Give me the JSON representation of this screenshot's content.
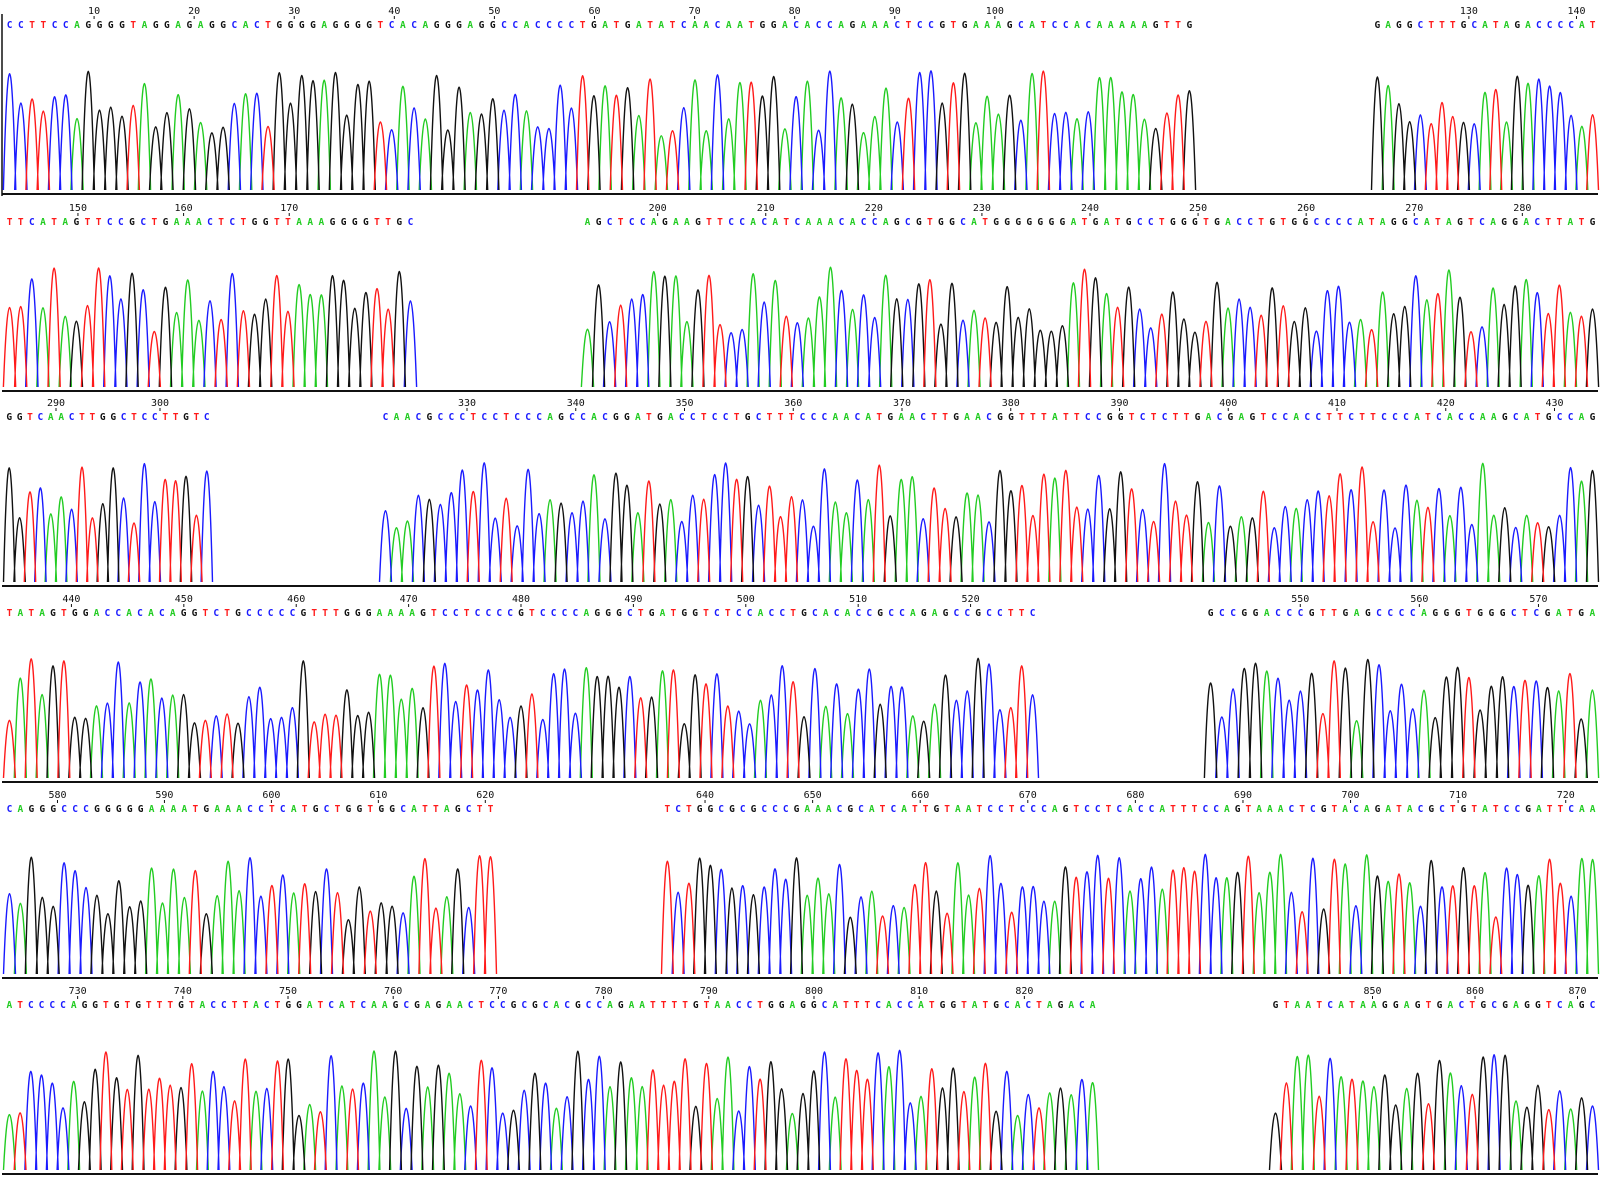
{
  "colors": {
    "A": "#22cc22",
    "C": "#1a1aff",
    "G": "#111111",
    "T": "#ff1a1a"
  },
  "chart_data": {
    "type": "line",
    "title": "",
    "xlabel": "",
    "ylabel": "",
    "grid": false,
    "legend": "none",
    "series": [
      {
        "name": "A"
      },
      {
        "name": "C"
      },
      {
        "name": "G"
      },
      {
        "name": "T"
      }
    ],
    "panels": [
      {
        "ticks": [
          10,
          20,
          30,
          40,
          50,
          60,
          70,
          80,
          90,
          100,
          130,
          140
        ],
        "segments": [
          {
            "from": 1,
            "to": 120,
            "seq": "CCTTCCAGGGGTAGGAGAGGCACTGGGGAGGGGTCACAGGGAGGCCACCCCTGATGATATCAACAATGGACACCAGAAACTCCGTGAAAGCATCCACAAAAAGTTG"
          },
          {
            "from": 121,
            "to": 142,
            "seq": "GAGGCTTTGCATAGACCCCAT"
          }
        ]
      },
      {
        "ticks": [
          150,
          160,
          170,
          200,
          210,
          220,
          230,
          240,
          250,
          260,
          270,
          280
        ],
        "segments": [
          {
            "from": 143,
            "to": 182,
            "seq": "TTCATAGTTCCGCTGAAACTCTGGTTAAAGGGGTTGC"
          },
          {
            "from": 193,
            "to": 287,
            "seq": "AGCTCCAGAAGTTCCACATCAAACACCAGCGTGGCATGGGGGGGATGATGCCTGGGTGACCTGTGGCCCCATAGGCATAGTCAGGACTTATG"
          }
        ]
      },
      {
        "ticks": [
          290,
          300,
          330,
          340,
          350,
          360,
          370,
          380,
          390,
          400,
          410,
          420,
          430
        ],
        "segments": [
          {
            "from": 285,
            "to": 305,
            "seq": "GGTCAACTTGGCTCCTTGTC"
          },
          {
            "from": 322,
            "to": 434,
            "seq": "CAACGCCCTCCTCCCAGCCACGGATGACCTCCTGCTTTCCCAACATGAACTTGAACGGTTTATTCCGGTCTCTTGACGAGTCCACCTTCTTCCCATCACCAAGCATGCCAG"
          }
        ]
      },
      {
        "ticks": [
          440,
          450,
          460,
          470,
          480,
          490,
          500,
          510,
          520,
          550,
          560,
          570
        ],
        "segments": [
          {
            "from": 434,
            "to": 526,
            "seq": "TATAGTGGACCACACAGGTCTGCCCCCGTTTGGGAAAAGTCCTCCCCGTCCCCAGGGCTGATGGTCTCCACCTGCACACCGCCAGAGCCGCCTTC"
          },
          {
            "from": 542,
            "to": 575,
            "seq": "GCCGGACCCGTTGAGCCCCAGGGTGGGCTCGATGA"
          }
        ]
      },
      {
        "ticks": [
          580,
          590,
          600,
          610,
          620,
          640,
          650,
          660,
          670,
          680,
          690,
          700,
          710,
          720
        ],
        "segments": [
          {
            "from": 575,
            "to": 621,
            "seq": "CAGGGCCCGGGGGAAAATGAAACCTCATGCTGGTGGCATTAGCTT"
          },
          {
            "from": 636,
            "to": 723,
            "seq": "TCTGGCGCGCCCGAAACGCATCATTGTAATCCTCCCAGTCCTCACCATTTCCAGTAAACTCGTACAGATACGCTGTATCCGATTCAA"
          }
        ]
      },
      {
        "ticks": [
          730,
          740,
          750,
          760,
          770,
          780,
          790,
          800,
          810,
          820,
          850,
          860,
          870
        ],
        "segments": [
          {
            "from": 723,
            "to": 827,
            "seq": "ATCCCCAGGTGTGTTTGTACCTTACTGGATCATCAAGCGAGAACTCCGCGCACGCCAGAATTTTGTAACCTGGAGGCATTTCACCATGGTATGCACTAGACA"
          },
          {
            "from": 840,
            "to": 872,
            "seq": "GTAATCATAAGGAGTGACTGCGAGGTCAGC"
          }
        ]
      }
    ]
  }
}
